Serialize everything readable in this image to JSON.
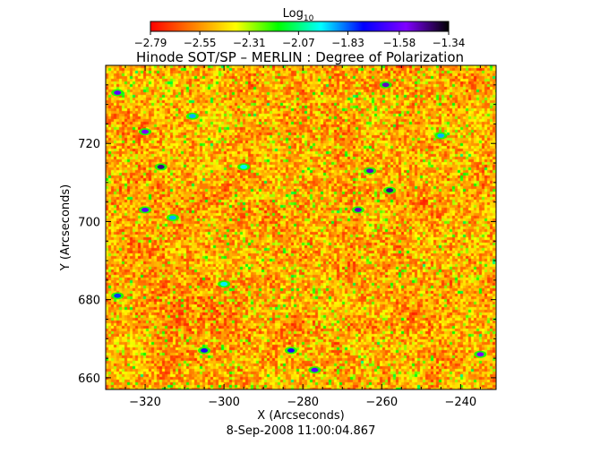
{
  "chart_data": {
    "type": "heatmap",
    "title": "Hinode SOT/SP – MERLIN : Degree of Polarization",
    "xlabel": "X (Arcseconds)",
    "ylabel": "Y (Arcseconds)",
    "date_label": "8-Sep-2008 11:00:04.867",
    "xlim": [
      -330,
      -231
    ],
    "ylim": [
      657,
      740
    ],
    "x_ticks": [
      -320,
      -300,
      -280,
      -260,
      -240
    ],
    "y_ticks": [
      660,
      680,
      700,
      720
    ],
    "x_tick_labels": [
      "−320",
      "−300",
      "−280",
      "−260",
      "−240"
    ],
    "y_tick_labels": [
      "660",
      "680",
      "700",
      "720"
    ],
    "colorbar": {
      "label_base": "Log",
      "label_sub": "10",
      "min": -2.79,
      "max": -1.34,
      "ticks": [
        -2.79,
        -2.55,
        -2.31,
        -2.07,
        -1.83,
        -1.58,
        -1.34
      ],
      "tick_labels": [
        "−2.79",
        "−2.55",
        "−2.31",
        "−2.07",
        "−1.83",
        "−1.58",
        "−1.34"
      ],
      "colors": [
        "#ff0000",
        "#ff7f00",
        "#ffff00",
        "#00ff00",
        "#00ffff",
        "#0000ff",
        "#8000ff",
        "#000000"
      ]
    },
    "features": [
      {
        "x": -320,
        "y": 723,
        "value": -1.55
      },
      {
        "x": -316,
        "y": 714,
        "value": -1.45
      },
      {
        "x": -320,
        "y": 703,
        "value": -1.6
      },
      {
        "x": -305,
        "y": 667,
        "value": -1.7
      },
      {
        "x": -300,
        "y": 684,
        "value": -1.95
      },
      {
        "x": -266,
        "y": 703,
        "value": -1.5
      },
      {
        "x": -263,
        "y": 713,
        "value": -1.5
      },
      {
        "x": -258,
        "y": 708,
        "value": -1.45
      },
      {
        "x": -259,
        "y": 735,
        "value": -1.5
      },
      {
        "x": -283,
        "y": 667,
        "value": -1.7
      },
      {
        "x": -277,
        "y": 662,
        "value": -1.6
      },
      {
        "x": -327,
        "y": 733,
        "value": -1.6
      },
      {
        "x": -327,
        "y": 681,
        "value": -1.8
      },
      {
        "x": -313,
        "y": 701,
        "value": -1.9
      },
      {
        "x": -308,
        "y": 727,
        "value": -1.9
      },
      {
        "x": -245,
        "y": 722,
        "value": -1.9
      },
      {
        "x": -235,
        "y": 666,
        "value": -1.55
      },
      {
        "x": -295,
        "y": 714,
        "value": -1.95
      }
    ]
  }
}
